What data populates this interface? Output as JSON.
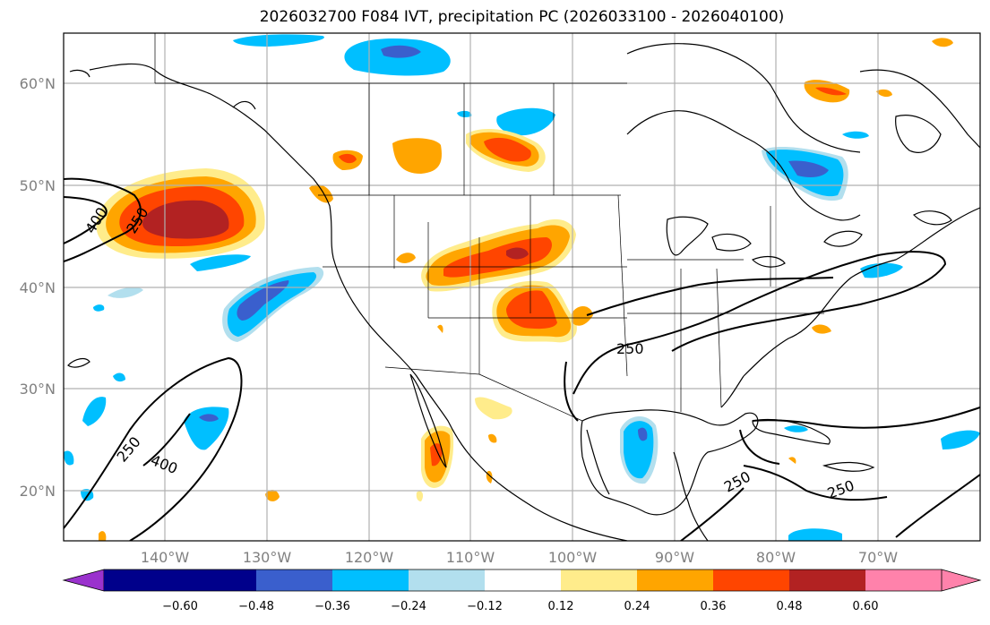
{
  "title": "2026032700 F084 IVT, precipitation PC (2026033100 - 2026040100)",
  "lat_labels": [
    "60°N",
    "50°N",
    "40°N",
    "30°N",
    "20°N"
  ],
  "lon_labels": [
    "140°W",
    "130°W",
    "120°W",
    "110°W",
    "100°W",
    "90°W",
    "80°W",
    "70°W"
  ],
  "ivt_contour_levels": [
    "250",
    "400"
  ],
  "ivt_contour_labels": [
    "400",
    "250",
    "250",
    "400",
    "250",
    "250",
    "250"
  ],
  "colorbar": {
    "tick_labels": [
      "−0.60",
      "−0.48",
      "−0.36",
      "−0.24",
      "−0.12",
      "0.12",
      "0.24",
      "0.36",
      "0.48",
      "0.60"
    ],
    "colors": [
      "#9a32cd",
      "#00008b",
      "#3a5fcd",
      "#00bfff",
      "#b2dfee",
      "#ffffff",
      "#ffec8b",
      "#ffa500",
      "#ff4500",
      "#b22222",
      "#ff82ab"
    ]
  },
  "colors": {
    "grid": "#b0b0b0",
    "coast": "#000000",
    "ivt_contour": "#000000"
  }
}
